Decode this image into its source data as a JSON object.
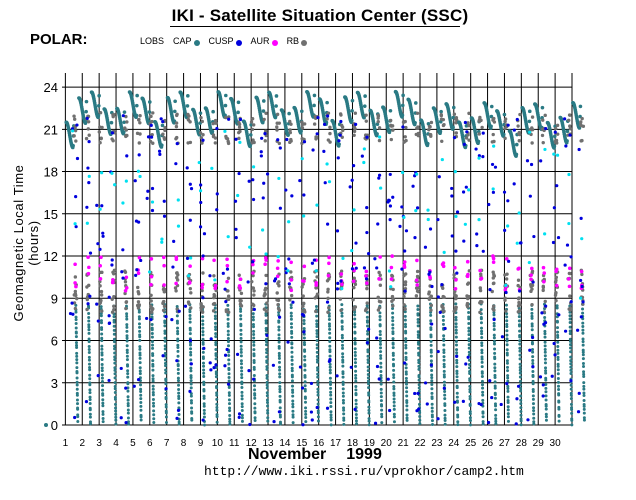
{
  "header": {
    "title": "IKI - Satellite Situation Center (SSC)",
    "satellite": "POLAR:"
  },
  "footer": {
    "month": "November",
    "year": "1999",
    "url": "http://www.iki.rssi.ru/vprokhor/camp2.htm"
  },
  "chart_data": {
    "type": "scatter",
    "title": "IKI - Satellite Situation Center (SSC)",
    "xlabel": "November 1999",
    "ylabel": "Geomagnetic Local Time (hours)",
    "xlim": [
      0.8,
      31
    ],
    "ylim": [
      0,
      25
    ],
    "x_ticks": [
      1,
      2,
      3,
      4,
      5,
      6,
      7,
      8,
      9,
      10,
      11,
      12,
      13,
      14,
      15,
      16,
      17,
      18,
      19,
      20,
      21,
      22,
      23,
      24,
      25,
      26,
      27,
      28,
      29,
      30
    ],
    "y_ticks": [
      0,
      3,
      6,
      9,
      12,
      15,
      18,
      21,
      24
    ],
    "legend": [
      {
        "name": "LOBS",
        "color": "#ffffff",
        "marker": "none"
      },
      {
        "name": "CAP",
        "color": "#2a7a84"
      },
      {
        "name": "CUSP",
        "color": "#0000dd"
      },
      {
        "name": "AUR",
        "color": "#ff00ff"
      },
      {
        "name": "RB",
        "color": "#707070"
      }
    ],
    "orbit_period_days": 0.75,
    "series": [
      {
        "name": "CAP",
        "color": "#2a7a84",
        "description": "apogee arcs near 21-24 h and vertical descents to 0 h each orbit"
      },
      {
        "name": "CUSP",
        "color": "#0000dd",
        "description": "scattered points along each orbit track"
      },
      {
        "name": "AUR",
        "color": "#ff00ff",
        "description": "points near 9.5-12 h"
      },
      {
        "name": "RB",
        "color": "#707070",
        "description": "points near 8-11 h and 20-23 h"
      }
    ]
  }
}
